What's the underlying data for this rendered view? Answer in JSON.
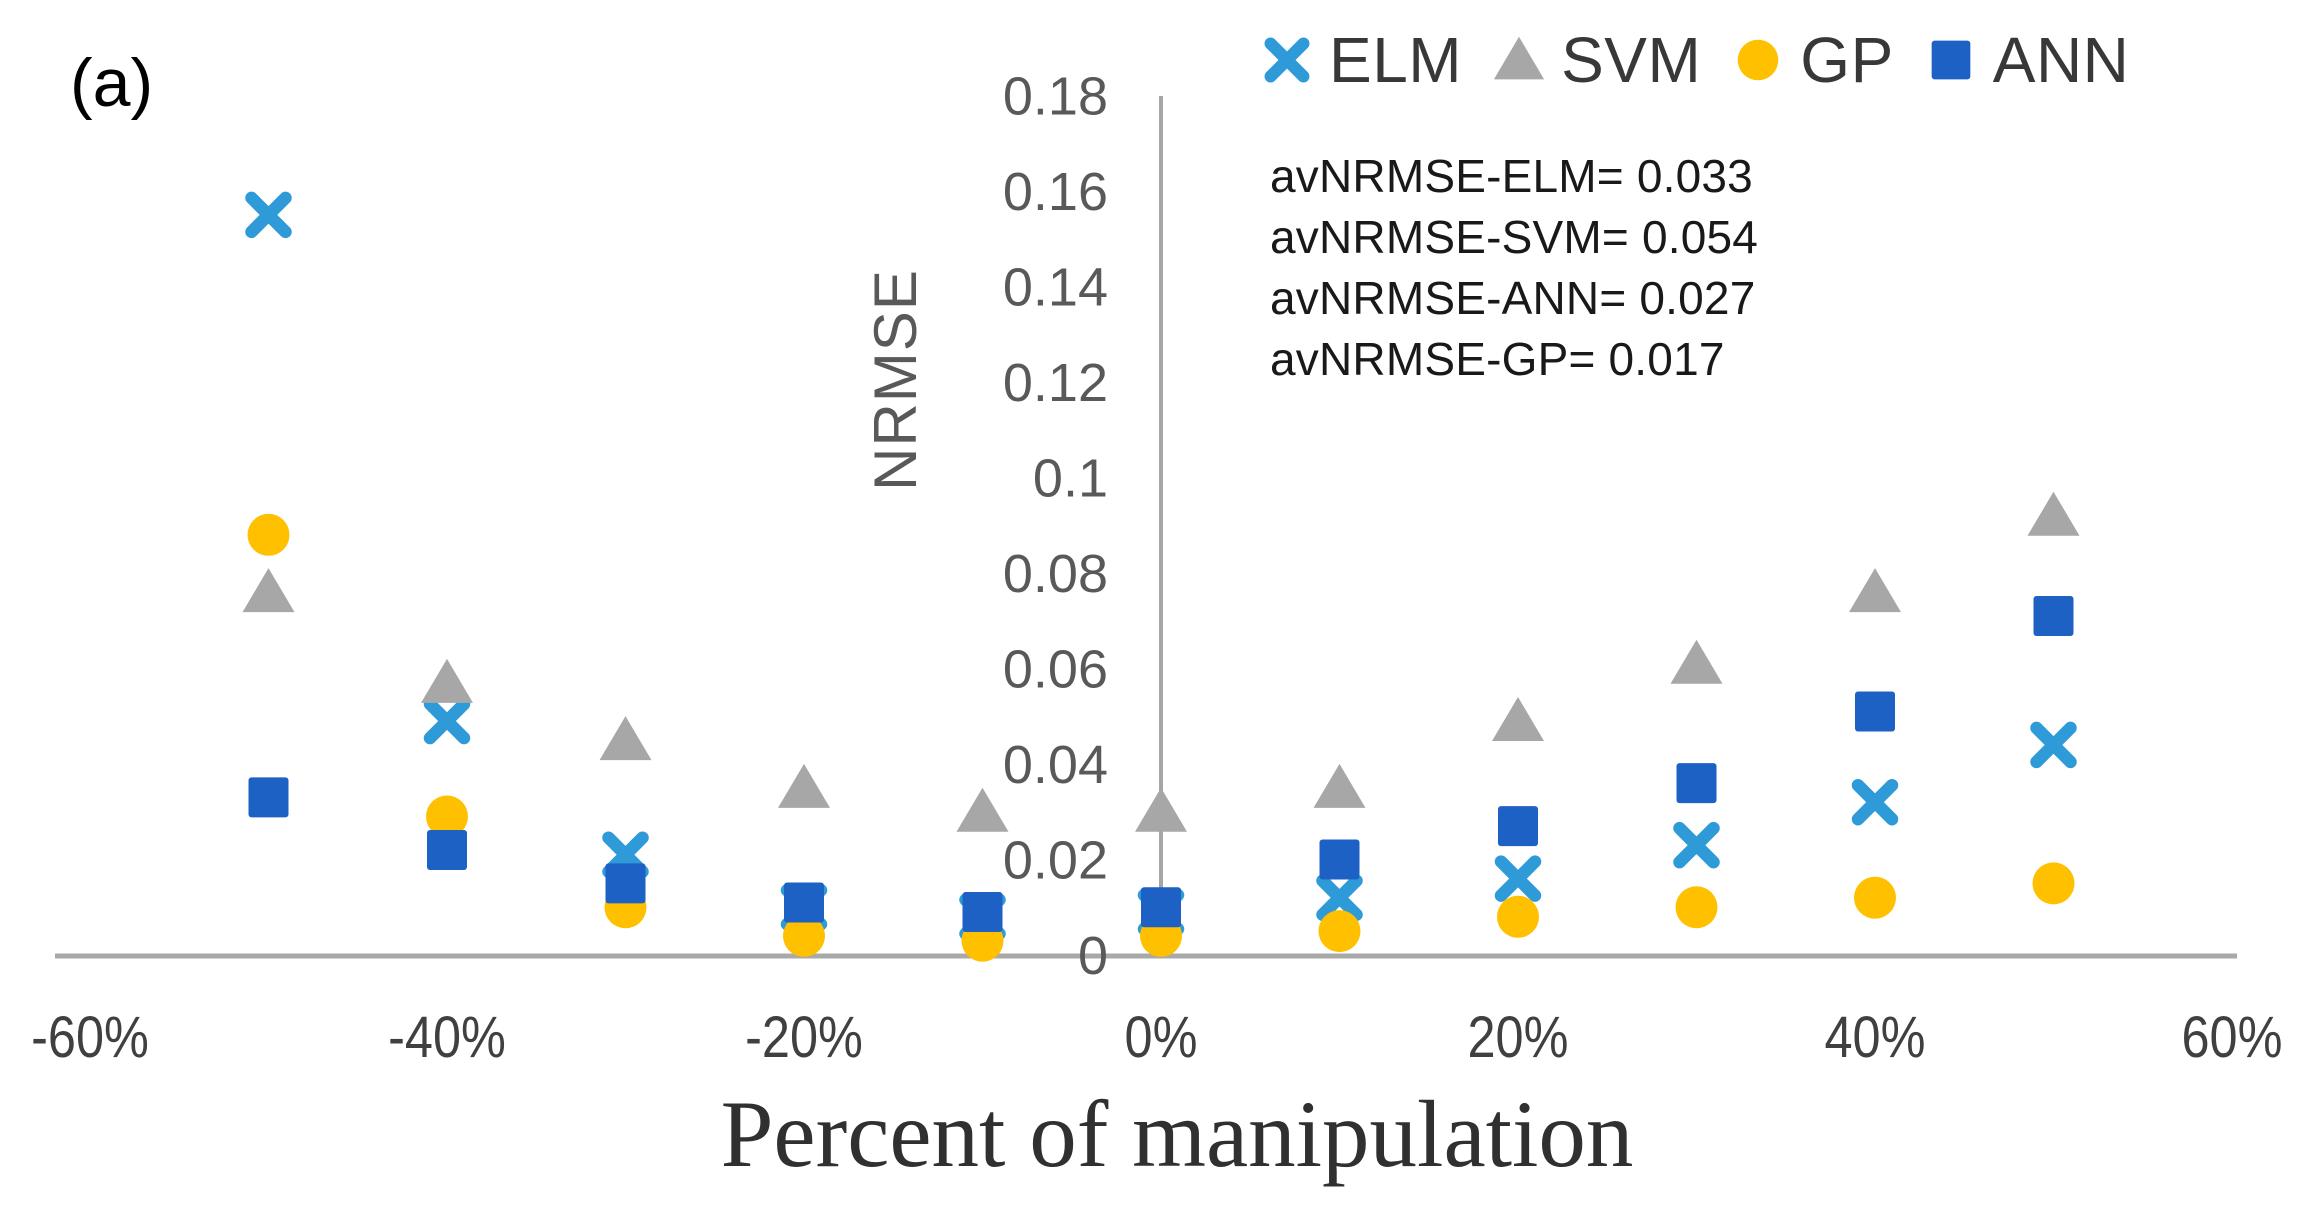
{
  "figure_label": "(a)",
  "legend": {
    "items": [
      {
        "id": "elm",
        "label": "ELM",
        "marker": "x",
        "color": "#2E9AD8"
      },
      {
        "id": "svm",
        "label": "SVM",
        "marker": "triangle",
        "color": "#A7A7A7"
      },
      {
        "id": "gp",
        "label": "GP",
        "marker": "circle",
        "color": "#FFC000"
      },
      {
        "id": "ann",
        "label": "ANN",
        "marker": "square",
        "color": "#1D61C4"
      }
    ]
  },
  "annotations": {
    "lines": [
      "avNRMSE-ELM= 0.033",
      "avNRMSE-SVM= 0.054",
      "avNRMSE-ANN= 0.027",
      "avNRMSE-GP= 0.017"
    ]
  },
  "chart_data": {
    "type": "scatter",
    "title": "",
    "xlabel": "Percent of manipulation",
    "ylabel": "NRMSE",
    "xlim": [
      -60,
      60
    ],
    "ylim": [
      0,
      0.18
    ],
    "grid": false,
    "legend_position": "top",
    "x": [
      -50,
      -40,
      -30,
      -20,
      -10,
      0,
      10,
      20,
      30,
      40,
      50
    ],
    "series": [
      {
        "name": "ELM",
        "marker": "x",
        "color": "#2E9AD8",
        "values": [
          0.155,
          0.049,
          0.021,
          0.01,
          0.008,
          0.009,
          0.012,
          0.016,
          0.023,
          0.032,
          0.044
        ]
      },
      {
        "name": "SVM",
        "marker": "triangle",
        "color": "#A7A7A7",
        "values": [
          0.076,
          0.057,
          0.045,
          0.035,
          0.03,
          0.03,
          0.035,
          0.049,
          0.061,
          0.076,
          0.092
        ]
      },
      {
        "name": "GP",
        "marker": "circle",
        "color": "#FFC000",
        "values": [
          0.088,
          0.029,
          0.01,
          0.004,
          0.003,
          0.004,
          0.005,
          0.008,
          0.01,
          0.012,
          0.015
        ]
      },
      {
        "name": "ANN",
        "marker": "square",
        "color": "#1D61C4",
        "values": [
          0.033,
          0.022,
          0.015,
          0.011,
          0.009,
          0.01,
          0.02,
          0.027,
          0.036,
          0.051,
          0.071
        ]
      }
    ],
    "averages": {
      "ELM": 0.033,
      "SVM": 0.054,
      "ANN": 0.027,
      "GP": 0.017
    },
    "x_tick_values": [
      -60,
      -40,
      -20,
      0,
      20,
      40,
      60
    ],
    "x_tick_labels": [
      "-60%",
      "-40%",
      "-20%",
      "0%",
      "20%",
      "40%",
      "60%"
    ],
    "y_tick_values": [
      0,
      0.02,
      0.04,
      0.06,
      0.08,
      0.1,
      0.12,
      0.14,
      0.16,
      0.18
    ],
    "y_tick_labels": [
      "0",
      "0.02",
      "0.04",
      "0.06",
      "0.08",
      "0.1",
      "0.12",
      "0.14",
      "0.16",
      "0.18"
    ]
  },
  "colors": {
    "axis_line": "#A6A6A6",
    "y_tick_text": "#595959",
    "x_tick_text": "#404040",
    "legend_text": "#383838",
    "annotation_text": "#191919",
    "x_title_text": "#303030"
  }
}
